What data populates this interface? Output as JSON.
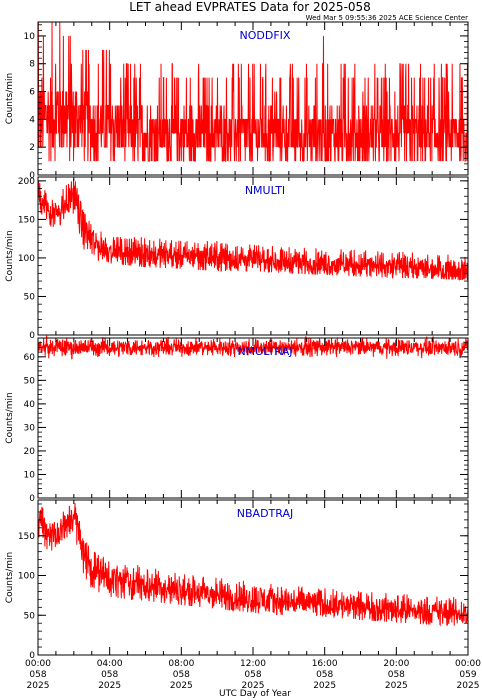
{
  "header": {
    "title": "LET ahead EVPRATES Data for 2025-058",
    "timestamp": "Wed Mar  5 09:55:36 2025 ACE Science Center"
  },
  "colors": {
    "series": "#ff0000",
    "panel_label": "#0000cc",
    "axis": "#000000"
  },
  "chart_data": [
    {
      "type": "line",
      "title": "NODDFIX",
      "ylabel": "Counts/min",
      "ylim": [
        0,
        11
      ],
      "yticks": [
        0,
        2,
        4,
        6,
        8,
        10
      ],
      "series": [
        {
          "name": "NODDFIX",
          "x_hours": [
            0,
            1,
            2,
            3,
            4,
            6,
            8,
            10,
            12,
            14,
            16,
            18,
            20,
            22,
            24
          ],
          "values": [
            4,
            4.5,
            4,
            3.5,
            3.5,
            3,
            3,
            3,
            3,
            3,
            3,
            3,
            3,
            3,
            3
          ],
          "range_low": [
            0,
            0,
            0,
            0,
            0,
            0,
            0,
            0,
            0,
            0,
            0,
            0,
            0,
            0,
            0
          ],
          "range_high": [
            11,
            8,
            8,
            7,
            7,
            7,
            7,
            6,
            6,
            6,
            10,
            6,
            6,
            6,
            6
          ]
        }
      ]
    },
    {
      "type": "line",
      "title": "NMULTI",
      "ylabel": "Counts/min",
      "ylim": [
        0,
        205
      ],
      "yticks": [
        0,
        50,
        100,
        150,
        200
      ],
      "series": [
        {
          "name": "NMULTI",
          "x_hours": [
            0,
            0.5,
            1,
            1.5,
            2,
            2.5,
            3,
            4,
            6,
            8,
            10,
            12,
            14,
            16,
            18,
            20,
            22,
            24
          ],
          "values": [
            180,
            165,
            160,
            170,
            185,
            140,
            120,
            110,
            105,
            102,
            100,
            98,
            95,
            92,
            90,
            88,
            86,
            84
          ],
          "range_low": [
            160,
            145,
            140,
            150,
            160,
            115,
            100,
            95,
            90,
            88,
            85,
            85,
            82,
            80,
            78,
            76,
            75,
            73
          ],
          "range_high": [
            200,
            185,
            180,
            190,
            205,
            160,
            140,
            125,
            125,
            120,
            120,
            115,
            112,
            110,
            108,
            106,
            104,
            100
          ]
        }
      ]
    },
    {
      "type": "line",
      "title": "NMULTRAJ",
      "ylabel": "Counts/min",
      "ylim": [
        0,
        68
      ],
      "yticks": [
        0,
        10,
        20,
        30,
        40,
        50,
        60
      ],
      "series": [
        {
          "name": "NMULTRAJ",
          "x_hours": [
            0,
            4,
            8,
            12,
            16,
            20,
            24
          ],
          "values": [
            64,
            64,
            64,
            64,
            64,
            64,
            64
          ],
          "range_low": [
            60,
            61,
            61,
            61,
            61,
            61,
            61
          ],
          "range_high": [
            67,
            67,
            67,
            67,
            67,
            67,
            67
          ]
        }
      ]
    },
    {
      "type": "line",
      "title": "NBADTRAJ",
      "ylabel": "Counts/min",
      "ylim": [
        0,
        195
      ],
      "yticks": [
        0,
        50,
        100,
        150
      ],
      "xticks": [
        {
          "time": "00:00",
          "doy": "058",
          "year": "2025"
        },
        {
          "time": "04:00",
          "doy": "058",
          "year": "2025"
        },
        {
          "time": "08:00",
          "doy": "058",
          "year": "2025"
        },
        {
          "time": "12:00",
          "doy": "058",
          "year": "2025"
        },
        {
          "time": "16:00",
          "doy": "058",
          "year": "2025"
        },
        {
          "time": "20:00",
          "doy": "058",
          "year": "2025"
        },
        {
          "time": "00:00",
          "doy": "059",
          "year": "2025"
        }
      ],
      "xlabel": "UTC Day of Year",
      "series": [
        {
          "name": "NBADTRAJ",
          "x_hours": [
            0,
            0.5,
            1,
            1.5,
            2,
            2.5,
            3,
            4,
            6,
            8,
            10,
            12,
            14,
            16,
            18,
            20,
            22,
            24
          ],
          "values": [
            175,
            155,
            150,
            160,
            180,
            130,
            110,
            95,
            88,
            80,
            75,
            70,
            67,
            64,
            60,
            57,
            54,
            52
          ],
          "range_low": [
            150,
            135,
            130,
            140,
            155,
            105,
            85,
            75,
            70,
            65,
            60,
            55,
            52,
            50,
            46,
            43,
            40,
            38
          ],
          "range_high": [
            192,
            175,
            170,
            180,
            195,
            150,
            130,
            115,
            110,
            100,
            95,
            90,
            85,
            82,
            78,
            75,
            72,
            70
          ]
        }
      ]
    }
  ]
}
